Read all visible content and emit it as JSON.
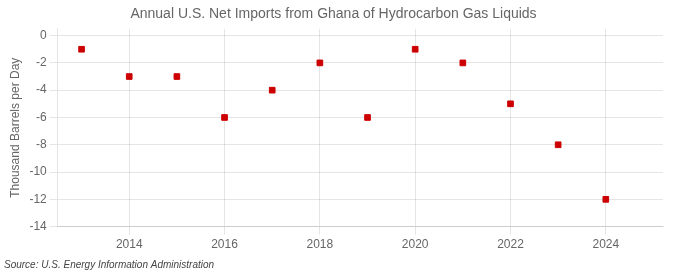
{
  "chart_data": {
    "type": "scatter",
    "title": "Annual U.S. Net Imports from Ghana of Hydrocarbon Gas Liquids",
    "ylabel": "Thousand Barrels per Day",
    "annotation": "Source: U.S. Energy Information Administration",
    "x": [
      2013,
      2014,
      2015,
      2016,
      2017,
      2018,
      2019,
      2020,
      2021,
      2022,
      2023,
      2024
    ],
    "values": [
      -1.0,
      -3.0,
      -3.0,
      -6.0,
      -4.0,
      -2.0,
      -6.0,
      -1.0,
      -2.0,
      -5.0,
      -8.0,
      -12.0
    ],
    "color": "#cc0000",
    "marker": "square",
    "xlim": [
      2012.5,
      2025.2
    ],
    "xticks": [
      2014,
      2016,
      2018,
      2020,
      2022,
      2024
    ],
    "ylim": [
      -14,
      0.5
    ],
    "yticks": [
      0,
      -2,
      -4,
      -6,
      -8,
      -10,
      -12,
      -14
    ],
    "grid": true
  }
}
